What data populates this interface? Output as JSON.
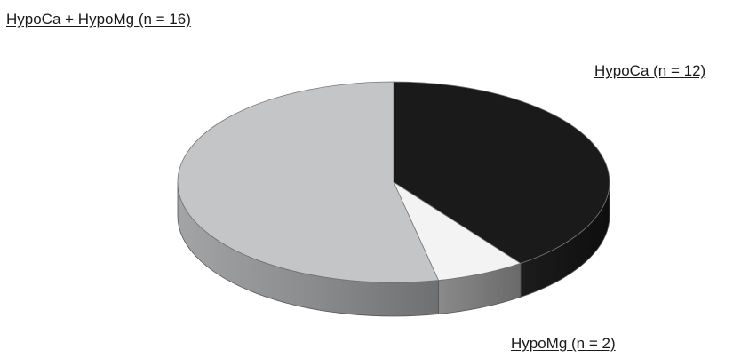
{
  "chart_data": {
    "type": "pie",
    "style": "3d",
    "slices": [
      {
        "label": "HypoCa + HypoMg (n = 16)",
        "category": "HypoCa + HypoMg",
        "n": 16,
        "color": "#c4c5c7"
      },
      {
        "label": "HypoCa (n = 12)",
        "category": "HypoCa",
        "n": 12,
        "color": "#1a1a1a"
      },
      {
        "label": "HypoMg (n = 2)",
        "category": "HypoMg",
        "n": 2,
        "color": "#f3f3f3"
      }
    ]
  }
}
